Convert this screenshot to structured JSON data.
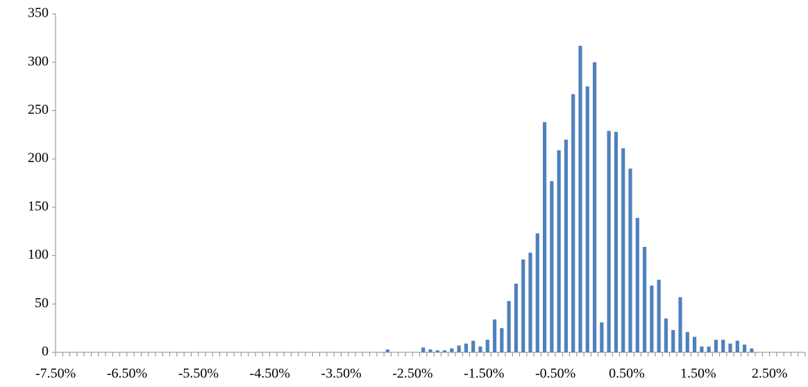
{
  "chart_data": {
    "type": "bar",
    "color": "#4f81bd",
    "categories": [
      "-7.50%",
      null,
      null,
      null,
      null,
      null,
      null,
      null,
      null,
      null,
      "-6.50%",
      null,
      null,
      null,
      null,
      null,
      null,
      null,
      null,
      null,
      "-5.50%",
      null,
      null,
      null,
      null,
      null,
      null,
      null,
      null,
      null,
      "-4.50%",
      null,
      null,
      null,
      null,
      null,
      null,
      null,
      null,
      null,
      "-3.50%",
      null,
      null,
      null,
      null,
      null,
      null,
      null,
      null,
      null,
      "-2.50%",
      null,
      null,
      null,
      null,
      null,
      null,
      null,
      null,
      null,
      "-1.50%",
      null,
      null,
      null,
      null,
      null,
      null,
      null,
      null,
      null,
      "-0.50%",
      null,
      null,
      null,
      null,
      null,
      null,
      null,
      null,
      null,
      "0.50%",
      null,
      null,
      null,
      null,
      null,
      null,
      null,
      null,
      null,
      "1.50%",
      null,
      null,
      null,
      null,
      null,
      null,
      null,
      null,
      null,
      "2.50%",
      null,
      null,
      null,
      null
    ],
    "values": [
      0,
      0,
      0,
      0,
      0,
      0,
      0,
      0,
      0,
      0,
      0,
      0,
      0,
      0,
      0,
      0,
      0,
      0,
      0,
      0,
      0,
      0,
      0,
      0,
      0,
      0,
      0,
      0,
      0,
      0,
      0,
      0,
      0,
      0,
      0,
      0,
      0,
      0,
      0,
      0,
      0,
      0,
      0,
      0,
      0,
      0,
      3,
      0,
      0,
      0,
      0,
      5,
      3,
      2,
      2,
      4,
      7,
      9,
      12,
      6,
      13,
      34,
      25,
      53,
      71,
      96,
      103,
      123,
      238,
      177,
      209,
      220,
      267,
      317,
      275,
      300,
      31,
      229,
      228,
      211,
      190,
      139,
      109,
      69,
      75,
      35,
      23,
      57,
      21,
      16,
      6,
      6,
      13,
      13,
      9,
      12,
      8,
      4,
      0,
      0,
      0,
      0,
      0,
      0,
      0
    ],
    "ylim": [
      0,
      350
    ],
    "yticks": [
      0,
      50,
      100,
      150,
      200,
      250,
      300,
      350
    ]
  }
}
